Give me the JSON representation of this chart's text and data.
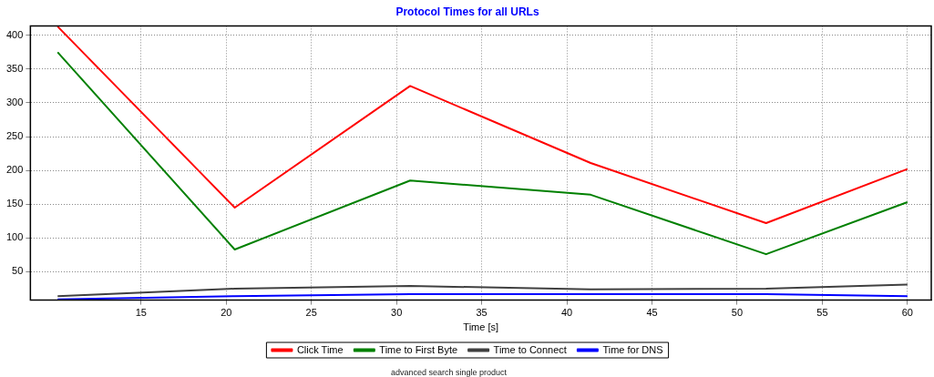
{
  "chart_data": {
    "type": "line",
    "title": "Protocol Times for all URLs",
    "xlabel": "Time [s]",
    "x": [
      10.1,
      20.5,
      30.8,
      41.4,
      51.7,
      60.0
    ],
    "series": [
      {
        "name": "Click Time",
        "color": "#ff0000",
        "values": [
          413,
          145,
          325,
          211,
          122,
          202
        ]
      },
      {
        "name": "Time to First Byte",
        "color": "#008000",
        "values": [
          375,
          83,
          185,
          164,
          76,
          153
        ]
      },
      {
        "name": "Time to Connect",
        "color": "#404040",
        "values": [
          14,
          25,
          29,
          24,
          25,
          31
        ]
      },
      {
        "name": "Time for DNS",
        "color": "#0000ff",
        "values": [
          9,
          14,
          17,
          17,
          17,
          14
        ]
      }
    ],
    "xlim": [
      8.5,
      61.4
    ],
    "xticks": [
      15,
      20,
      25,
      30,
      35,
      40,
      45,
      50,
      55,
      60
    ],
    "ylim": [
      8,
      414
    ],
    "yticks": [
      50,
      100,
      150,
      200,
      250,
      300,
      350,
      400
    ],
    "grid": true,
    "legend": "bottom",
    "marker": "none",
    "line_style": "solid",
    "annotations": [
      "advanced search single product"
    ]
  }
}
